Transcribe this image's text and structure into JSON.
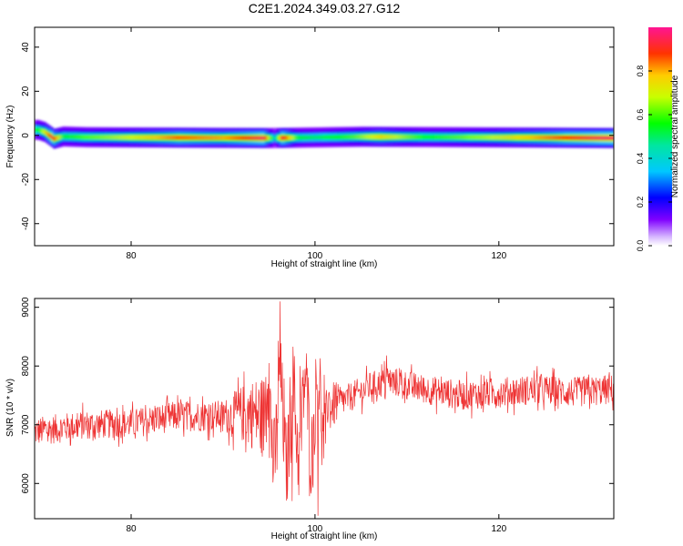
{
  "figure_title": "C2E1.2024.349.03.27.G12",
  "colors": {
    "snr_line": "#ee3333",
    "axes": "#000000",
    "background": "#ffffff"
  },
  "chart_data": [
    {
      "type": "heatmap",
      "title": "",
      "xlabel": "Height of straight line (km)",
      "ylabel": "Frequency (Hz)",
      "xlim": [
        69.5,
        132.5
      ],
      "ylim": [
        -50,
        49
      ],
      "xticks": [
        80,
        100,
        120
      ],
      "yticks": [
        -40,
        -20,
        0,
        20,
        40
      ],
      "colorbar": {
        "label": "Normalized spectral amplitude",
        "range": [
          0.0,
          1.0
        ],
        "ticks": [
          0.0,
          0.2,
          0.4,
          0.6,
          0.8
        ],
        "colormap": "rainbow"
      },
      "ridge": {
        "center_frequency_hz": [
          [
            69.8,
            2.5
          ],
          [
            70.5,
            1.5
          ],
          [
            71.5,
            -1.5
          ],
          [
            72.5,
            -0.5
          ],
          [
            75,
            -0.8
          ],
          [
            85,
            -1.0
          ],
          [
            95,
            -1.2
          ],
          [
            105,
            -0.6
          ],
          [
            115,
            -0.8
          ],
          [
            125,
            -1.0
          ],
          [
            132.3,
            -1.2
          ]
        ],
        "peak_amplitude": [
          [
            69.8,
            0.55
          ],
          [
            71.3,
            0.95
          ],
          [
            72.5,
            0.55
          ],
          [
            80,
            0.7
          ],
          [
            85,
            0.85
          ],
          [
            90,
            0.8
          ],
          [
            94.3,
            0.95
          ],
          [
            95.5,
            0.4
          ],
          [
            96.3,
            0.95
          ],
          [
            98,
            0.55
          ],
          [
            100,
            0.5
          ],
          [
            104,
            0.6
          ],
          [
            107,
            0.75
          ],
          [
            112,
            0.55
          ],
          [
            118,
            0.65
          ],
          [
            124,
            0.8
          ],
          [
            128,
            0.9
          ],
          [
            131,
            0.95
          ]
        ]
      }
    },
    {
      "type": "line",
      "title": "",
      "xlabel": "Height of straight line (km)",
      "ylabel": "SNR (10 * v/v)",
      "xlim": [
        69.5,
        132.5
      ],
      "ylim": [
        5400,
        9150
      ],
      "xticks": [
        80,
        100,
        120
      ],
      "yticks": [
        6000,
        7000,
        8000,
        9000
      ],
      "series": [
        {
          "color": "#ee3333",
          "mean_trend": [
            [
              69.5,
              6880
            ],
            [
              75,
              7000
            ],
            [
              80,
              7020
            ],
            [
              85,
              7150
            ],
            [
              90,
              7150
            ],
            [
              93,
              7200
            ],
            [
              97,
              7000
            ],
            [
              100,
              7200
            ],
            [
              103,
              7400
            ],
            [
              106,
              7650
            ],
            [
              108,
              7750
            ],
            [
              112,
              7600
            ],
            [
              116,
              7500
            ],
            [
              120,
              7550
            ],
            [
              124,
              7600
            ],
            [
              128,
              7550
            ],
            [
              132.5,
              7600
            ]
          ],
          "noise_amplitude": [
            [
              69.5,
              250
            ],
            [
              80,
              250
            ],
            [
              90,
              270
            ],
            [
              95,
              800
            ],
            [
              100,
              700
            ],
            [
              103,
              250
            ],
            [
              132.5,
              260
            ]
          ],
          "notable_points": [
            [
              95.0,
              8050
            ],
            [
              96.2,
              9100
            ],
            [
              97.5,
              5700
            ],
            [
              98.4,
              8000
            ],
            [
              100.3,
              5450
            ],
            [
              101.0,
              7850
            ],
            [
              107.8,
              8180
            ]
          ]
        }
      ]
    }
  ]
}
